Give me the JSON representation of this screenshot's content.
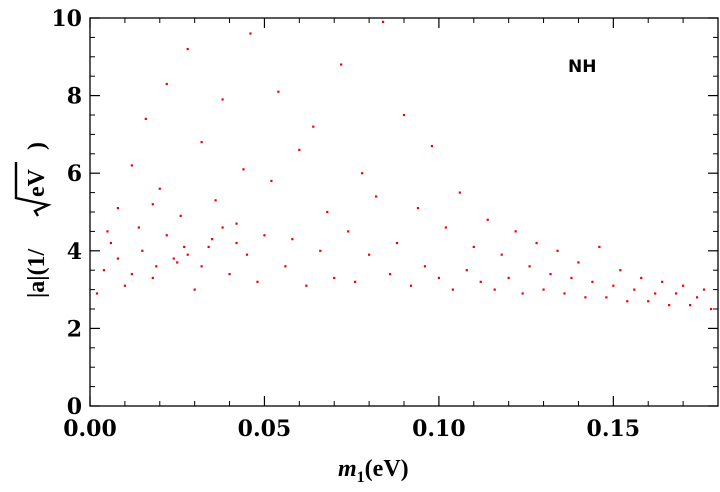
{
  "chart_data": {
    "type": "scatter",
    "xlabel_var": "m",
    "xlabel_sub": "1",
    "xlabel_unit": "(eV)",
    "ylabel_main": "|a|(1/",
    "ylabel_unit": "eV",
    "ylabel_close": ")",
    "annotation": "NH",
    "xlim": [
      0,
      0.18
    ],
    "ylim": [
      0,
      10
    ],
    "x_ticks": [
      0.0,
      0.05,
      0.1,
      0.15
    ],
    "x_tick_labels": [
      "0.00",
      "0.05",
      "0.10",
      "0.15"
    ],
    "y_ticks": [
      0,
      2,
      4,
      6,
      8,
      10
    ],
    "y_tick_labels": [
      "0",
      "2",
      "4",
      "6",
      "8",
      "10"
    ],
    "marker_color": "#ee0000",
    "series": [
      {
        "points": [
          [
            0.002,
            2.9
          ],
          [
            0.004,
            3.5
          ],
          [
            0.006,
            4.2
          ],
          [
            0.008,
            5.1
          ],
          [
            0.01,
            3.1
          ],
          [
            0.012,
            6.2
          ],
          [
            0.014,
            4.6
          ],
          [
            0.016,
            7.4
          ],
          [
            0.018,
            3.3
          ],
          [
            0.02,
            5.6
          ],
          [
            0.022,
            8.3
          ],
          [
            0.024,
            3.8
          ],
          [
            0.026,
            4.9
          ],
          [
            0.028,
            9.2
          ],
          [
            0.03,
            3.0
          ],
          [
            0.032,
            6.8
          ],
          [
            0.034,
            4.1
          ],
          [
            0.036,
            5.3
          ],
          [
            0.038,
            7.9
          ],
          [
            0.04,
            3.4
          ],
          [
            0.042,
            4.7
          ],
          [
            0.044,
            6.1
          ],
          [
            0.046,
            9.6
          ],
          [
            0.048,
            3.2
          ],
          [
            0.05,
            4.4
          ],
          [
            0.052,
            5.8
          ],
          [
            0.054,
            8.1
          ],
          [
            0.056,
            3.6
          ],
          [
            0.058,
            4.3
          ],
          [
            0.06,
            6.6
          ],
          [
            0.062,
            3.1
          ],
          [
            0.064,
            7.2
          ],
          [
            0.066,
            4.0
          ],
          [
            0.068,
            5.0
          ],
          [
            0.07,
            3.3
          ],
          [
            0.072,
            8.8
          ],
          [
            0.074,
            4.5
          ],
          [
            0.076,
            3.2
          ],
          [
            0.078,
            6.0
          ],
          [
            0.08,
            3.9
          ],
          [
            0.082,
            5.4
          ],
          [
            0.084,
            9.9
          ],
          [
            0.086,
            3.4
          ],
          [
            0.088,
            4.2
          ],
          [
            0.09,
            7.5
          ],
          [
            0.092,
            3.1
          ],
          [
            0.094,
            5.1
          ],
          [
            0.096,
            3.6
          ],
          [
            0.098,
            6.7
          ],
          [
            0.1,
            3.3
          ],
          [
            0.102,
            4.6
          ],
          [
            0.104,
            3.0
          ],
          [
            0.106,
            5.5
          ],
          [
            0.108,
            3.5
          ],
          [
            0.11,
            4.1
          ],
          [
            0.112,
            3.2
          ],
          [
            0.114,
            4.8
          ],
          [
            0.116,
            3.0
          ],
          [
            0.118,
            3.9
          ],
          [
            0.12,
            3.3
          ],
          [
            0.122,
            4.5
          ],
          [
            0.124,
            2.9
          ],
          [
            0.126,
            3.6
          ],
          [
            0.128,
            4.2
          ],
          [
            0.13,
            3.0
          ],
          [
            0.132,
            3.4
          ],
          [
            0.134,
            4.0
          ],
          [
            0.136,
            2.9
          ],
          [
            0.138,
            3.3
          ],
          [
            0.14,
            3.7
          ],
          [
            0.142,
            2.8
          ],
          [
            0.144,
            3.2
          ],
          [
            0.146,
            4.1
          ],
          [
            0.148,
            2.8
          ],
          [
            0.15,
            3.1
          ],
          [
            0.152,
            3.5
          ],
          [
            0.154,
            2.7
          ],
          [
            0.156,
            3.0
          ],
          [
            0.158,
            3.3
          ],
          [
            0.16,
            2.7
          ],
          [
            0.162,
            2.9
          ],
          [
            0.164,
            3.2
          ],
          [
            0.166,
            2.6
          ],
          [
            0.168,
            2.9
          ],
          [
            0.17,
            3.1
          ],
          [
            0.172,
            2.6
          ],
          [
            0.174,
            2.8
          ],
          [
            0.176,
            3.0
          ],
          [
            0.178,
            2.5
          ],
          [
            0.015,
            4.0
          ],
          [
            0.025,
            3.7
          ],
          [
            0.035,
            4.3
          ],
          [
            0.045,
            3.9
          ],
          [
            0.012,
            3.4
          ],
          [
            0.022,
            4.4
          ],
          [
            0.032,
            3.6
          ],
          [
            0.042,
            4.2
          ],
          [
            0.018,
            5.2
          ],
          [
            0.028,
            3.9
          ],
          [
            0.038,
            4.6
          ],
          [
            0.008,
            3.8
          ],
          [
            0.005,
            4.5
          ],
          [
            0.019,
            3.6
          ],
          [
            0.027,
            4.1
          ]
        ]
      }
    ]
  }
}
